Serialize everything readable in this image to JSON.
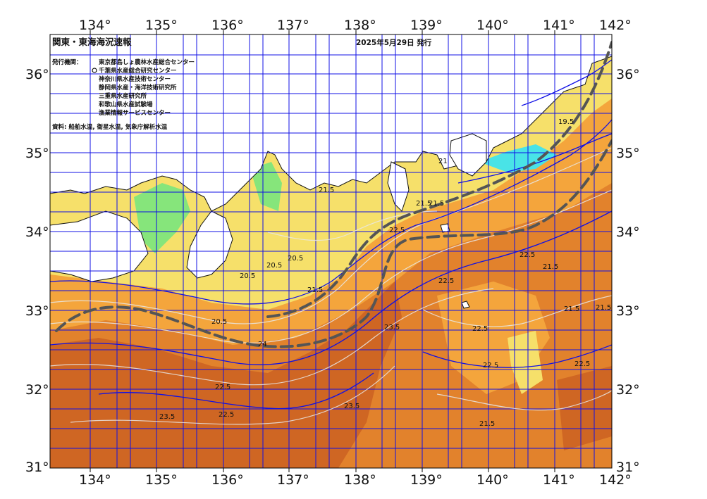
{
  "map": {
    "title": "関東・東海海況速報",
    "issue_date": "2025年5月29日 発行",
    "issuers_label": "発行機関：",
    "issuers": [
      "東京都島しょ農林水産総合センター",
      "千葉県水産総合研究センター",
      "神奈川県水産技術センター",
      "静岡県水産・海洋技術研究所",
      "三重県水産研究所",
      "和歌山県水産試験場",
      "漁業情報サービスセンター"
    ],
    "materials": "資料: 船舶水温, 衛星水温, 気象庁解析水温",
    "longitudes": [
      "134°",
      "135°",
      "136°",
      "137°",
      "138°",
      "139°",
      "140°",
      "141°",
      "142°"
    ],
    "latitudes": [
      "36°",
      "35°",
      "34°",
      "33°",
      "32°",
      "31°"
    ],
    "contour_labels": [
      "21.5",
      "22.5",
      "21.5",
      "20.5",
      "20.5",
      "20.5",
      "21.5",
      "22.5",
      "23.5",
      "23.5",
      "24",
      "22.5",
      "22.5",
      "23.5",
      "22.5",
      "21.5",
      "22.5",
      "21.5",
      "21.5",
      "19.5",
      "21.5",
      "21",
      "22.5",
      "22.5",
      "21.5",
      "20.5"
    ],
    "colors": {
      "land": "#ffffff",
      "grid": "#1010e6",
      "cold_water": "#49e3e7",
      "cool_water": "#86e57b",
      "mild_water": "#f6e06a",
      "warm_water": "#f4a53c",
      "hot_water": "#e2822c",
      "hottest_water": "#cf6623",
      "kuroshio_axis": "#555555"
    }
  }
}
